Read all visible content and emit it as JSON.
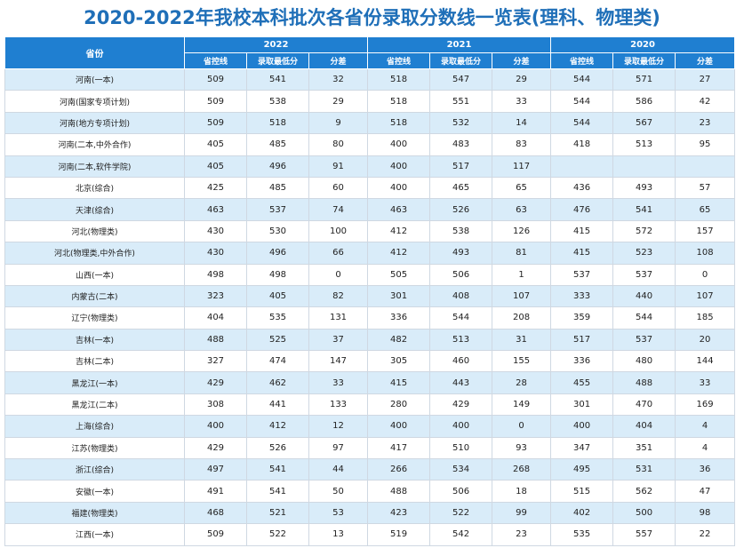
{
  "title": "2020-2022年我校本科批次各省份录取分数线一览表(理科、物理类)",
  "header": {
    "province": "省份",
    "years": [
      "2022",
      "2021",
      "2020"
    ],
    "sub": [
      "省控线",
      "录取最低分",
      "分差"
    ]
  },
  "rows": [
    {
      "province": "河南(一本)",
      "y2022": [
        "509",
        "541",
        "32"
      ],
      "y2021": [
        "518",
        "547",
        "29"
      ],
      "y2020": [
        "544",
        "571",
        "27"
      ]
    },
    {
      "province": "河南(国家专项计划)",
      "y2022": [
        "509",
        "538",
        "29"
      ],
      "y2021": [
        "518",
        "551",
        "33"
      ],
      "y2020": [
        "544",
        "586",
        "42"
      ]
    },
    {
      "province": "河南(地方专项计划)",
      "y2022": [
        "509",
        "518",
        "9"
      ],
      "y2021": [
        "518",
        "532",
        "14"
      ],
      "y2020": [
        "544",
        "567",
        "23"
      ]
    },
    {
      "province": "河南(二本,中外合作)",
      "y2022": [
        "405",
        "485",
        "80"
      ],
      "y2021": [
        "400",
        "483",
        "83"
      ],
      "y2020": [
        "418",
        "513",
        "95"
      ]
    },
    {
      "province": "河南(二本,软件学院)",
      "y2022": [
        "405",
        "496",
        "91"
      ],
      "y2021": [
        "400",
        "517",
        "117"
      ],
      "y2020": [
        "",
        "",
        ""
      ]
    },
    {
      "province": "北京(综合)",
      "y2022": [
        "425",
        "485",
        "60"
      ],
      "y2021": [
        "400",
        "465",
        "65"
      ],
      "y2020": [
        "436",
        "493",
        "57"
      ]
    },
    {
      "province": "天津(综合)",
      "y2022": [
        "463",
        "537",
        "74"
      ],
      "y2021": [
        "463",
        "526",
        "63"
      ],
      "y2020": [
        "476",
        "541",
        "65"
      ]
    },
    {
      "province": "河北(物理类)",
      "y2022": [
        "430",
        "530",
        "100"
      ],
      "y2021": [
        "412",
        "538",
        "126"
      ],
      "y2020": [
        "415",
        "572",
        "157"
      ]
    },
    {
      "province": "河北(物理类,中外合作)",
      "y2022": [
        "430",
        "496",
        "66"
      ],
      "y2021": [
        "412",
        "493",
        "81"
      ],
      "y2020": [
        "415",
        "523",
        "108"
      ]
    },
    {
      "province": "山西(一本)",
      "y2022": [
        "498",
        "498",
        "0"
      ],
      "y2021": [
        "505",
        "506",
        "1"
      ],
      "y2020": [
        "537",
        "537",
        "0"
      ]
    },
    {
      "province": "内蒙古(二本)",
      "y2022": [
        "323",
        "405",
        "82"
      ],
      "y2021": [
        "301",
        "408",
        "107"
      ],
      "y2020": [
        "333",
        "440",
        "107"
      ]
    },
    {
      "province": "辽宁(物理类)",
      "y2022": [
        "404",
        "535",
        "131"
      ],
      "y2021": [
        "336",
        "544",
        "208"
      ],
      "y2020": [
        "359",
        "544",
        "185"
      ]
    },
    {
      "province": "吉林(一本)",
      "y2022": [
        "488",
        "525",
        "37"
      ],
      "y2021": [
        "482",
        "513",
        "31"
      ],
      "y2020": [
        "517",
        "537",
        "20"
      ]
    },
    {
      "province": "吉林(二本)",
      "y2022": [
        "327",
        "474",
        "147"
      ],
      "y2021": [
        "305",
        "460",
        "155"
      ],
      "y2020": [
        "336",
        "480",
        "144"
      ]
    },
    {
      "province": "黑龙江(一本)",
      "y2022": [
        "429",
        "462",
        "33"
      ],
      "y2021": [
        "415",
        "443",
        "28"
      ],
      "y2020": [
        "455",
        "488",
        "33"
      ]
    },
    {
      "province": "黑龙江(二本)",
      "y2022": [
        "308",
        "441",
        "133"
      ],
      "y2021": [
        "280",
        "429",
        "149"
      ],
      "y2020": [
        "301",
        "470",
        "169"
      ]
    },
    {
      "province": "上海(综合)",
      "y2022": [
        "400",
        "412",
        "12"
      ],
      "y2021": [
        "400",
        "400",
        "0"
      ],
      "y2020": [
        "400",
        "404",
        "4"
      ]
    },
    {
      "province": "江苏(物理类)",
      "y2022": [
        "429",
        "526",
        "97"
      ],
      "y2021": [
        "417",
        "510",
        "93"
      ],
      "y2020": [
        "347",
        "351",
        "4"
      ]
    },
    {
      "province": "浙江(综合)",
      "y2022": [
        "497",
        "541",
        "44"
      ],
      "y2021": [
        "266",
        "534",
        "268"
      ],
      "y2020": [
        "495",
        "531",
        "36"
      ]
    },
    {
      "province": "安徽(一本)",
      "y2022": [
        "491",
        "541",
        "50"
      ],
      "y2021": [
        "488",
        "506",
        "18"
      ],
      "y2020": [
        "515",
        "562",
        "47"
      ]
    },
    {
      "province": "福建(物理类)",
      "y2022": [
        "468",
        "521",
        "53"
      ],
      "y2021": [
        "423",
        "522",
        "99"
      ],
      "y2020": [
        "402",
        "500",
        "98"
      ]
    },
    {
      "province": "江西(一本)",
      "y2022": [
        "509",
        "522",
        "13"
      ],
      "y2021": [
        "519",
        "542",
        "23"
      ],
      "y2020": [
        "535",
        "557",
        "22"
      ]
    }
  ]
}
